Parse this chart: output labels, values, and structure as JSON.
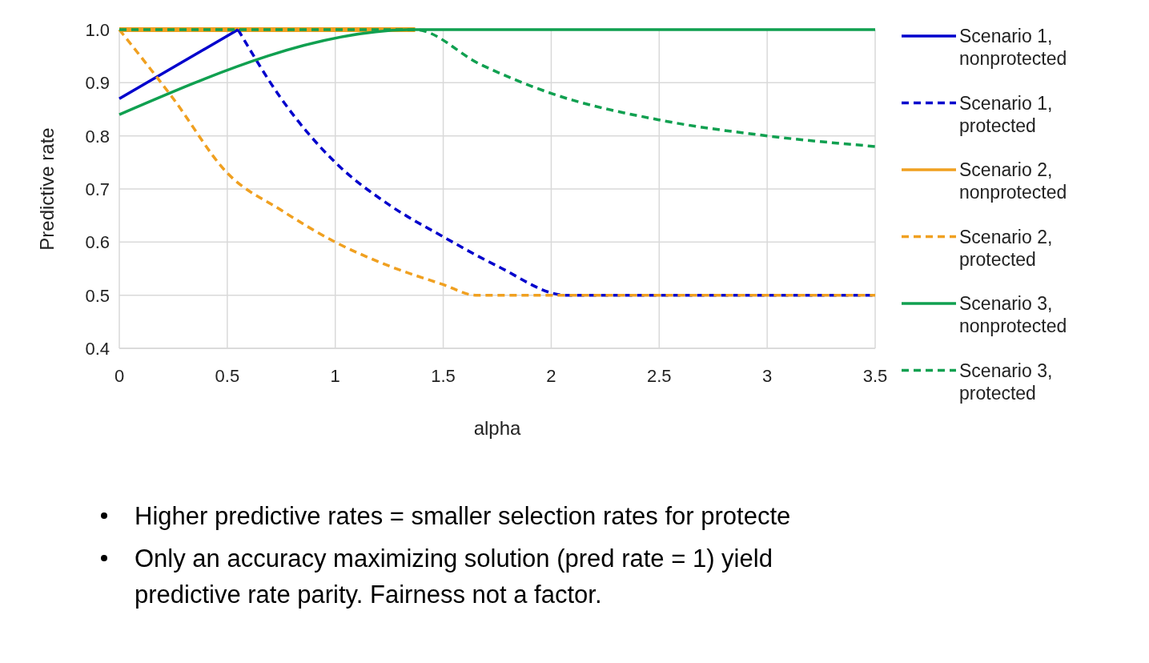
{
  "chart_data": {
    "type": "line",
    "xlabel": "alpha",
    "ylabel": "Predictive rate",
    "xlim": [
      0,
      3.5
    ],
    "ylim": [
      0.4,
      1.0
    ],
    "xticks": [
      0,
      0.5,
      1,
      1.5,
      2,
      2.5,
      3,
      3.5
    ],
    "yticks": [
      {
        "value": 0.4,
        "label": "0.4"
      },
      {
        "value": 0.5,
        "label": "0.5"
      },
      {
        "value": 0.6,
        "label": "0.6"
      },
      {
        "value": 0.7,
        "label": "0.7"
      },
      {
        "value": 0.8,
        "label": "0.8"
      },
      {
        "value": 0.9,
        "label": "0.9"
      },
      {
        "value": 1.0,
        "label": "1.0"
      }
    ],
    "grid": true,
    "legend": "right",
    "marker": "none",
    "series": [
      {
        "name": "Scenario 1, nonprotected",
        "color": "#0000cc",
        "line_style": "solid",
        "x": [
          0,
          0.55
        ],
        "values": [
          0.87,
          1.0
        ]
      },
      {
        "name": "Scenario 1, protected",
        "color": "#0000cc",
        "line_style": "dashed",
        "x": [
          0.55,
          0.75,
          1,
          1.25,
          1.5,
          1.75,
          2.07,
          2.5,
          3,
          3.5
        ],
        "values": [
          1.0,
          0.87,
          0.75,
          0.67,
          0.61,
          0.555,
          0.5,
          0.5,
          0.5,
          0.5
        ]
      },
      {
        "name": "Scenario 2, nonprotected",
        "color": "#f0a020",
        "line_style": "solid",
        "x": [
          0,
          1.37
        ],
        "values": [
          1.0,
          1.0
        ]
      },
      {
        "name": "Scenario 2, protected",
        "color": "#f0a020",
        "line_style": "dashed",
        "x": [
          0,
          0.25,
          0.5,
          0.75,
          1,
          1.25,
          1.5,
          1.65,
          2,
          2.5,
          3,
          3.5
        ],
        "values": [
          1.0,
          0.87,
          0.73,
          0.66,
          0.6,
          0.555,
          0.52,
          0.5,
          0.5,
          0.5,
          0.5,
          0.5
        ]
      },
      {
        "name": "Scenario 3, nonprotected",
        "color": "#10a050",
        "line_style": "solid",
        "x": [
          0,
          1.37,
          3.5
        ],
        "values": [
          0.84,
          1.0,
          1.0
        ]
      },
      {
        "name": "Scenario 3, protected",
        "color": "#10a050",
        "line_style": "dashed",
        "x": [
          0,
          1.37,
          1.67,
          2,
          2.5,
          3,
          3.5
        ],
        "values": [
          1.0,
          1.0,
          0.935,
          0.88,
          0.83,
          0.8,
          0.78
        ]
      }
    ],
    "annotations": [
      "Higher predictive rates = smaller selection rates for protecte",
      "Only an accuracy maximizing solution (pred rate = 1)  yield",
      "predictive rate parity.  Fairness not a factor."
    ]
  }
}
